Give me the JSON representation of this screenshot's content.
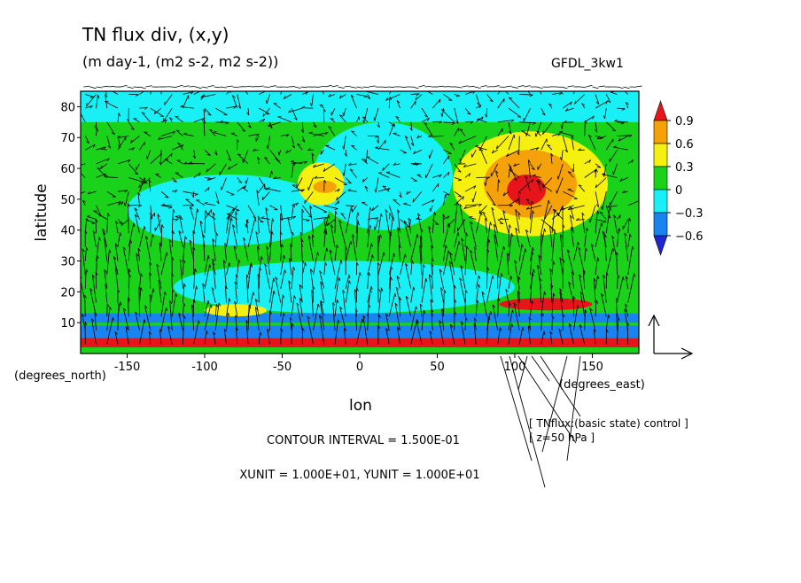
{
  "chart_data": {
    "type": "heatmap",
    "title": "TN flux div, (x,y)",
    "subtitle": "(m day-1, (m2 s-2, m2 s-2))",
    "model_label": "GFDL_3kw1",
    "xlabel": "lon",
    "ylabel": "latitude",
    "x_unit_label": "(degrees_east)",
    "y_unit_label": "(degrees_north)",
    "xlim": [
      -180,
      180
    ],
    "ylim": [
      0,
      85
    ],
    "x_ticks": [
      -150,
      -100,
      -50,
      0,
      50,
      100,
      150
    ],
    "x_tick_labels": [
      "-150",
      "-100",
      "-50",
      "0",
      "50",
      "100",
      "150"
    ],
    "y_ticks": [
      10,
      20,
      30,
      40,
      50,
      60,
      70,
      80
    ],
    "y_tick_labels": [
      "10",
      "20",
      "30",
      "40",
      "50",
      "60",
      "70",
      "80"
    ],
    "colorbar": {
      "levels": [
        0.9,
        0.6,
        0.3,
        0,
        -0.3,
        -0.6
      ],
      "labels": [
        "0.9",
        "0.6",
        "0.3",
        "0",
        "−0.3",
        "−0.6"
      ],
      "colors": [
        "#e8141c",
        "#f5a10a",
        "#f5f00f",
        "#19d219",
        "#19f0f5",
        "#1983f0",
        "#1e28d2"
      ],
      "extend": "both"
    },
    "contour_interval_text": "CONTOUR INTERVAL = 1.500E-01",
    "vector_unit_text": "XUNIT = 1.000E+01, YUNIT = 1.000E+01",
    "annotation_line1": "[ TNflux:(basic state) control ]",
    "annotation_line2": "[ z=50 hPa ]",
    "regions": [
      {
        "name": "equatorial-red-band",
        "lon": [
          -180,
          180
        ],
        "lat": [
          2,
          5
        ],
        "value": 1.0
      },
      {
        "name": "equatorial-blue-band",
        "lon": [
          -180,
          180
        ],
        "lat": [
          5,
          9
        ],
        "value": -0.6
      },
      {
        "name": "tropical-blue-band",
        "lon": [
          -180,
          180
        ],
        "lat": [
          10,
          13
        ],
        "value": -0.45
      },
      {
        "name": "subtropical-cyan",
        "lon": [
          -120,
          100
        ],
        "lat": [
          13,
          30
        ],
        "value": -0.15
      },
      {
        "name": "midlat-cyan-west",
        "lon": [
          -150,
          -20
        ],
        "lat": [
          35,
          58
        ],
        "value": -0.15
      },
      {
        "name": "midlat-cyan-east",
        "lon": [
          -30,
          60
        ],
        "lat": [
          40,
          75
        ],
        "value": -0.2
      },
      {
        "name": "pacific-yellow",
        "lon": [
          -40,
          -10
        ],
        "lat": [
          48,
          62
        ],
        "value": 0.4
      },
      {
        "name": "pacific-orange",
        "lon": [
          -30,
          -15
        ],
        "lat": [
          52,
          56
        ],
        "value": 0.6
      },
      {
        "name": "asia-yellow",
        "lon": [
          60,
          160
        ],
        "lat": [
          38,
          72
        ],
        "value": 0.4
      },
      {
        "name": "asia-orange",
        "lon": [
          80,
          140
        ],
        "lat": [
          44,
          66
        ],
        "value": 0.75
      },
      {
        "name": "asia-red",
        "lon": [
          95,
          120
        ],
        "lat": [
          48,
          58
        ],
        "value": 1.0
      },
      {
        "name": "tropics-yellow-west",
        "lon": [
          -100,
          -60
        ],
        "lat": [
          12,
          16
        ],
        "value": 0.4
      },
      {
        "name": "tropics-red-east",
        "lon": [
          90,
          150
        ],
        "lat": [
          14,
          18
        ],
        "value": 1.0
      },
      {
        "name": "polar-mixed",
        "lon": [
          -180,
          180
        ],
        "lat": [
          75,
          85
        ],
        "value": -0.1
      }
    ]
  }
}
